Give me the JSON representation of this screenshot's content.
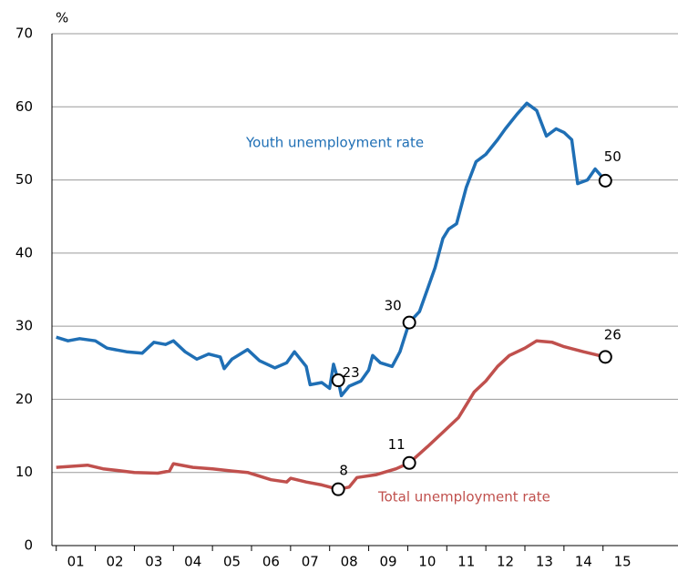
{
  "chart_data": {
    "type": "line",
    "y_unit": "%",
    "xlim": [
      2000.89,
      2016.92
    ],
    "xticks": [
      {
        "value": 2001.5,
        "label": "01"
      },
      {
        "value": 2002.5,
        "label": "02"
      },
      {
        "value": 2003.5,
        "label": "03"
      },
      {
        "value": 2004.5,
        "label": "04"
      },
      {
        "value": 2005.5,
        "label": "05"
      },
      {
        "value": 2006.5,
        "label": "06"
      },
      {
        "value": 2007.5,
        "label": "07"
      },
      {
        "value": 2008.5,
        "label": "08"
      },
      {
        "value": 2009.5,
        "label": "09"
      },
      {
        "value": 2010.5,
        "label": "10"
      },
      {
        "value": 2011.5,
        "label": "11"
      },
      {
        "value": 2012.5,
        "label": "12"
      },
      {
        "value": 2013.5,
        "label": "13"
      },
      {
        "value": 2014.5,
        "label": "14"
      },
      {
        "value": 2015.5,
        "label": "15"
      }
    ],
    "ylim": [
      0,
      70
    ],
    "yticks": [
      0,
      10,
      20,
      30,
      40,
      50,
      60,
      70
    ],
    "grid": true,
    "series": [
      {
        "name": "Youth unemployment rate",
        "color": "#1f6fb5",
        "x": [
          2001.0,
          2001.3,
          2001.6,
          2002.0,
          2002.3,
          2002.8,
          2003.2,
          2003.5,
          2003.8,
          2004.0,
          2004.3,
          2004.6,
          2004.9,
          2005.2,
          2005.3,
          2005.5,
          2005.9,
          2006.2,
          2006.6,
          2006.9,
          2007.1,
          2007.4,
          2007.5,
          2007.8,
          2008.0,
          2008.1,
          2008.22,
          2008.3,
          2008.5,
          2008.8,
          2009.0,
          2009.1,
          2009.3,
          2009.6,
          2009.8,
          2010.04,
          2010.3,
          2010.5,
          2010.7,
          2010.9,
          2011.05,
          2011.25,
          2011.5,
          2011.75,
          2012.0,
          2012.3,
          2012.5,
          2012.8,
          2013.05,
          2013.3,
          2013.55,
          2013.8,
          2014.0,
          2014.2,
          2014.35,
          2014.6,
          2014.8,
          2015.06
        ],
        "values": [
          28.5,
          28,
          28.3,
          28,
          27,
          26.5,
          26.3,
          27.8,
          27.5,
          28,
          26.5,
          25.5,
          26.2,
          25.8,
          24.2,
          25.5,
          26.8,
          25.3,
          24.3,
          25,
          26.5,
          24.5,
          22,
          22.3,
          21.5,
          24.8,
          22.6,
          20.5,
          21.8,
          22.5,
          24,
          26,
          25,
          24.5,
          26.5,
          30.5,
          32,
          35,
          38,
          42,
          43.3,
          44,
          49,
          52.5,
          53.5,
          55.5,
          57,
          59,
          60.5,
          59.5,
          56,
          57,
          56.5,
          55.5,
          49.5,
          50,
          51.5,
          49.9
        ]
      },
      {
        "name": "Total unemployment rate",
        "color": "#c0504d",
        "x": [
          2001.0,
          2001.8,
          2002.2,
          2003.0,
          2003.6,
          2003.9,
          2004.0,
          2004.5,
          2005.0,
          2005.5,
          2005.9,
          2006.5,
          2006.9,
          2007.0,
          2007.4,
          2007.8,
          2008.22,
          2008.5,
          2008.7,
          2009.2,
          2009.7,
          2010.04,
          2010.5,
          2010.9,
          2011.3,
          2011.7,
          2012.0,
          2012.3,
          2012.6,
          2013.0,
          2013.3,
          2013.7,
          2014.0,
          2014.5,
          2015.06
        ],
        "values": [
          10.7,
          11,
          10.5,
          10,
          9.9,
          10.2,
          11.2,
          10.7,
          10.5,
          10.2,
          10,
          9,
          8.7,
          9.2,
          8.7,
          8.3,
          7.7,
          8,
          9.3,
          9.7,
          10.5,
          11.3,
          13.5,
          15.5,
          17.5,
          21,
          22.5,
          24.5,
          26,
          27,
          28,
          27.8,
          27.2,
          26.5,
          25.8
        ]
      }
    ],
    "annotations": [
      {
        "x": 2008.22,
        "y": 22.6,
        "text": "23"
      },
      {
        "x": 2010.04,
        "y": 30.5,
        "text": "30"
      },
      {
        "x": 2015.06,
        "y": 49.9,
        "text": "50"
      },
      {
        "x": 2008.22,
        "y": 7.7,
        "text": "8"
      },
      {
        "x": 2010.04,
        "y": 11.3,
        "text": "11"
      },
      {
        "x": 2015.06,
        "y": 25.8,
        "text": "26"
      }
    ]
  }
}
